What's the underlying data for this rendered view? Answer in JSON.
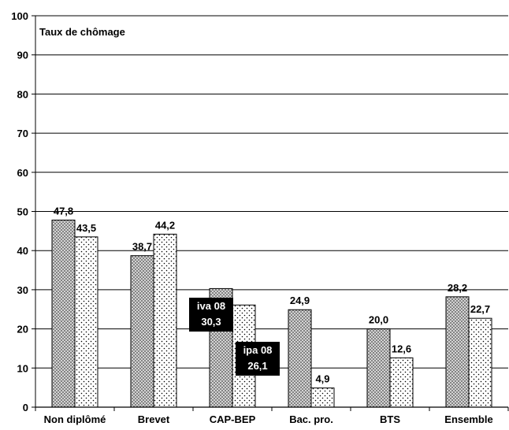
{
  "chart_data": {
    "type": "bar",
    "title": "Taux de chômage",
    "ylim": [
      0,
      100
    ],
    "yticks": [
      "0",
      "10",
      "20",
      "30",
      "40",
      "50",
      "60",
      "70",
      "80",
      "90",
      "100"
    ],
    "categories": [
      "Non diplômé",
      "Brevet",
      "CAP-BEP",
      "Bac. pro.",
      "BTS",
      "Ensemble"
    ],
    "series": [
      {
        "name": "iva 08",
        "values": [
          47.8,
          38.7,
          30.3,
          24.9,
          20.0,
          28.2
        ],
        "labels": [
          "47,8",
          "38,7",
          "30,3",
          "24,9",
          "20,0",
          "28,2"
        ],
        "pattern": "crosshatch-dark"
      },
      {
        "name": "ipa 08",
        "values": [
          43.5,
          44.2,
          26.1,
          4.9,
          12.6,
          22.7
        ],
        "labels": [
          "43,5",
          "44,2",
          "26,1",
          "4,9",
          "12,6",
          "22,7"
        ],
        "pattern": "dots-light"
      }
    ],
    "grid": true,
    "legend": "inline-boxes-at-CAP-BEP",
    "colors": {
      "bar_fill_dark": "#7a7a7a",
      "box_bg": "#000000",
      "box_text": "#ffffff"
    }
  }
}
